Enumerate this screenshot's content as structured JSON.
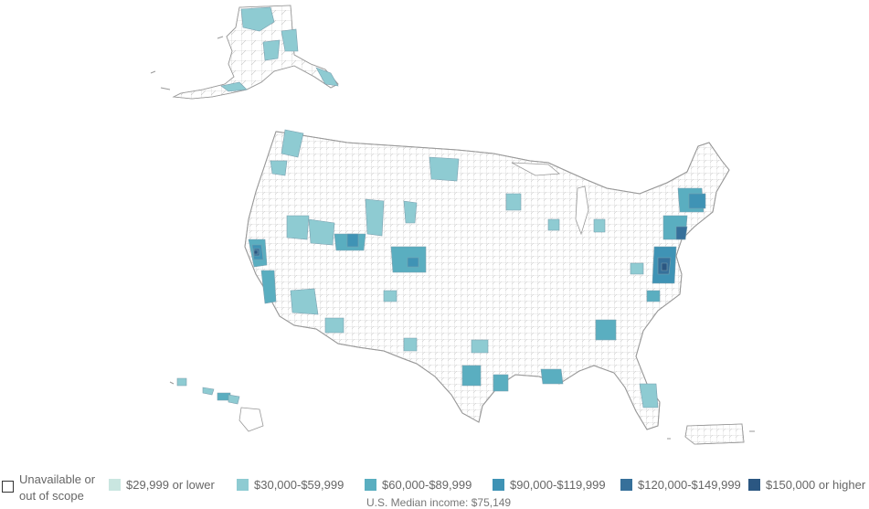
{
  "map": {
    "regions": [
      "alaska",
      "contiguous-us",
      "hawaii",
      "puerto-rico"
    ]
  },
  "colors": {
    "background": "#ffffff",
    "county_border": "#9a9a9a",
    "unavailable": "#ffffff",
    "tier1": "#c9e6e0",
    "tier2": "#8ecbd2",
    "tier3": "#5aaec0",
    "tier4": "#3f93b5",
    "tier5": "#36709a",
    "tier6": "#2b5782"
  },
  "legend": {
    "items": [
      {
        "label": "Unavailable or out of scope",
        "color": "#ffffff"
      },
      {
        "label": "$29,999 or lower",
        "color": "#c9e6e0"
      },
      {
        "label": "$30,000-$59,999",
        "color": "#8ecbd2"
      },
      {
        "label": "$60,000-$89,999",
        "color": "#5aaec0"
      },
      {
        "label": "$90,000-$119,999",
        "color": "#3f93b5"
      },
      {
        "label": "$120,000-$149,999",
        "color": "#36709a"
      },
      {
        "label": "$150,000 or higher",
        "color": "#2b5782"
      }
    ],
    "median_text": "U.S. Median income: $75,149"
  }
}
